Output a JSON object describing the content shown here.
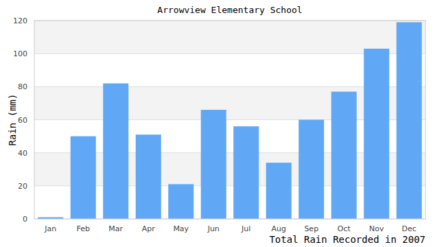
{
  "chart_data": {
    "type": "bar",
    "title": "Arrowview Elementary School",
    "x_label": "Total Rain Recorded in 2007",
    "y_label": "Rain (mm)",
    "categories": [
      "Jan",
      "Feb",
      "Mar",
      "Apr",
      "May",
      "Jun",
      "Jul",
      "Aug",
      "Sep",
      "Oct",
      "Nov",
      "Dec"
    ],
    "values": [
      1,
      50,
      82,
      51,
      21,
      66,
      56,
      34,
      60,
      77,
      103,
      119
    ],
    "color": "#60a8f5",
    "ylim": [
      0,
      120
    ],
    "yticks": [
      0,
      20,
      40,
      60,
      80,
      100,
      120
    ],
    "grid": true
  }
}
